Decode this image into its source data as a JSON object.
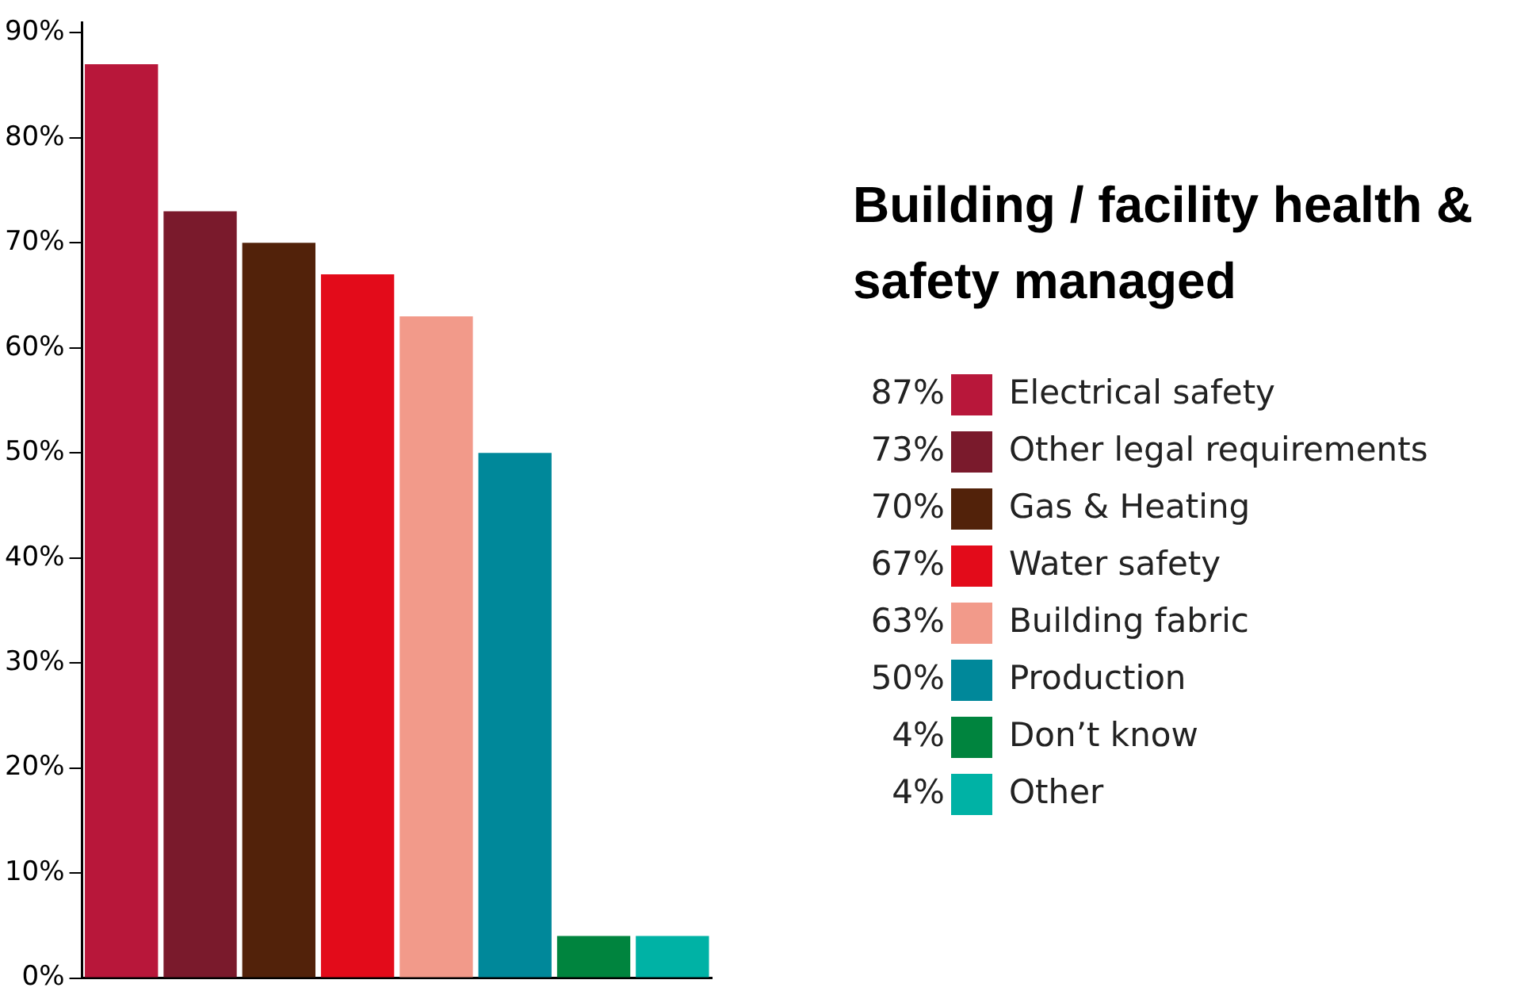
{
  "chart_data": {
    "type": "bar",
    "title": "Building / facility health & safety managed",
    "categories": [
      null,
      null,
      null,
      null,
      null,
      null,
      null,
      null
    ],
    "series": [
      {
        "name": "Electrical safety",
        "color": "#b8173a",
        "values": [
          87,
          null,
          null,
          null,
          null,
          null,
          null,
          null
        ]
      },
      {
        "name": "Other legal requirements",
        "color": "#7a1a2c",
        "values": [
          null,
          73,
          null,
          null,
          null,
          null,
          null,
          null
        ]
      },
      {
        "name": "Gas & Heating",
        "color": "#52220a",
        "values": [
          null,
          null,
          70,
          null,
          null,
          null,
          null,
          null
        ]
      },
      {
        "name": "Water safety",
        "color": "#e30b1a",
        "values": [
          null,
          null,
          null,
          67,
          null,
          null,
          null,
          null
        ]
      },
      {
        "name": "Building fabric",
        "color": "#f29a8a",
        "values": [
          null,
          null,
          null,
          null,
          63,
          null,
          null,
          null
        ]
      },
      {
        "name": "Production",
        "color": "#00889a",
        "values": [
          null,
          null,
          null,
          null,
          null,
          50,
          null,
          null
        ]
      },
      {
        "name": "Don’t know",
        "color": "#00843e",
        "values": [
          null,
          null,
          null,
          null,
          null,
          null,
          4,
          null
        ]
      },
      {
        "name": "Other",
        "color": "#00b2a5",
        "values": [
          null,
          null,
          null,
          null,
          null,
          null,
          null,
          4
        ]
      }
    ],
    "annotations": [
      "87%",
      "73%",
      "70%",
      "67%",
      "63%",
      "50%",
      "4%",
      "4%"
    ],
    "ylim": [
      0,
      91
    ],
    "yticks": [
      {
        "value": 0,
        "label": "0%"
      },
      {
        "value": 10,
        "label": "10%"
      },
      {
        "value": 20,
        "label": "20%"
      },
      {
        "value": 30,
        "label": "30%"
      },
      {
        "value": 40,
        "label": "40%"
      },
      {
        "value": 50,
        "label": "50%"
      },
      {
        "value": 60,
        "label": "60%"
      },
      {
        "value": 70,
        "label": "70%"
      },
      {
        "value": 80,
        "label": "80%"
      },
      {
        "value": 90,
        "label": "90%"
      }
    ],
    "tick_labels": "y",
    "grid": false,
    "legend": "right"
  }
}
